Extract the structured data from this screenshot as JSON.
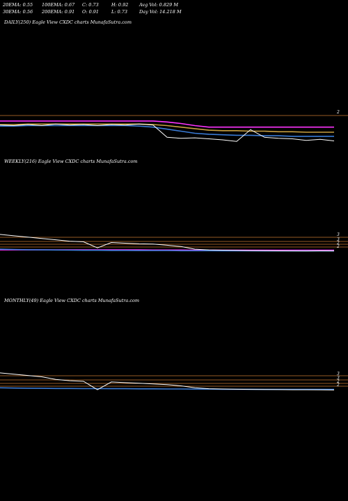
{
  "header": {
    "row1": [
      "20EMA: 0.55",
      "100EMA: 0.67",
      "C: 0.73",
      "H: 0.92",
      "Avg Vol: 0.829 M"
    ],
    "row2": [
      "30EMA: 0.56",
      "200EMA: 0.91",
      "O: 0.91",
      "L: 0.73",
      "Day Vol: 14.218 M"
    ]
  },
  "colors": {
    "background": "#000000",
    "price": "#ffffff",
    "ema_blue": "#3a7bd5",
    "ema_magenta": "#ff33ff",
    "ema_gold": "#c8a040",
    "grid": "#c87830"
  },
  "chart_data": [
    {
      "type": "line",
      "label": "DAILY(250) Eagle   View  CXDC charts MunafaSutra.com",
      "tick_labels": [
        "2"
      ],
      "series": [
        {
          "color": "#ff33ff",
          "values": [
            1.12,
            1.12,
            1.12,
            1.12,
            1.12,
            1.12,
            1.12,
            1.12,
            1.12,
            1.12,
            1.12,
            1.12,
            1.1,
            1.07,
            1.03,
            1.0,
            1.0,
            1.0,
            1.0,
            1.0,
            1.0,
            1.0,
            1.0,
            1.0,
            1.0
          ]
        },
        {
          "color": "#c8a040",
          "values": [
            1.05,
            1.05,
            1.06,
            1.06,
            1.06,
            1.06,
            1.06,
            1.06,
            1.06,
            1.06,
            1.06,
            1.05,
            1.03,
            1.0,
            0.97,
            0.94,
            0.93,
            0.93,
            0.92,
            0.92,
            0.91,
            0.91,
            0.9,
            0.9,
            0.9
          ]
        },
        {
          "color": "#3a7bd5",
          "values": [
            1.02,
            1.02,
            1.03,
            1.03,
            1.03,
            1.03,
            1.03,
            1.03,
            1.03,
            1.03,
            1.02,
            1.0,
            0.96,
            0.92,
            0.88,
            0.86,
            0.85,
            0.84,
            0.84,
            0.83,
            0.83,
            0.82,
            0.82,
            0.82,
            0.82
          ]
        },
        {
          "color": "#ffffff",
          "values": [
            1.04,
            1.03,
            1.05,
            1.03,
            1.06,
            1.04,
            1.05,
            1.03,
            1.05,
            1.04,
            1.06,
            1.04,
            0.8,
            0.78,
            0.79,
            0.77,
            0.75,
            0.72,
            0.95,
            0.8,
            0.78,
            0.77,
            0.74,
            0.76,
            0.73
          ]
        }
      ]
    },
    {
      "type": "line",
      "label": "WEEKLY(216) Eagle   View  CXDC charts MunafaSutra.com",
      "tick_labels": [
        "3",
        "3",
        "2",
        "2"
      ],
      "series": [
        {
          "color": "#ff33ff",
          "values": [
            0.35,
            0.35,
            0.35,
            0.35,
            0.35,
            0.35,
            0.35,
            0.35,
            0.35,
            0.35,
            0.35,
            0.34,
            0.34,
            0.34,
            0.33,
            0.33,
            0.33,
            0.33,
            0.33,
            0.33,
            0.33,
            0.33,
            0.33,
            0.33,
            0.33
          ]
        },
        {
          "color": "#3a7bd5",
          "values": [
            0.4,
            0.38,
            0.36,
            0.35,
            0.34,
            0.33,
            0.32,
            0.32,
            0.31,
            0.31,
            0.3,
            0.3,
            0.3,
            0.29,
            0.29,
            0.29,
            0.28,
            0.28,
            0.28,
            0.27,
            0.27,
            0.27,
            0.27,
            0.27,
            0.27
          ]
        },
        {
          "color": "#ffffff",
          "values": [
            1.5,
            1.4,
            1.3,
            1.2,
            1.1,
            1.0,
            0.95,
            0.5,
            0.9,
            0.85,
            0.8,
            0.78,
            0.7,
            0.6,
            0.4,
            0.35,
            0.33,
            0.32,
            0.3,
            0.29,
            0.28,
            0.27,
            0.26,
            0.28,
            0.27
          ]
        }
      ]
    },
    {
      "type": "line",
      "label": "MONTHLY(49) Eagle   View  CXDC charts MunafaSutra.com",
      "tick_labels": [
        "3",
        "3",
        "2",
        "2"
      ],
      "series": [
        {
          "color": "#3a7bd5",
          "values": [
            0.45,
            0.43,
            0.42,
            0.41,
            0.4,
            0.4,
            0.39,
            0.39,
            0.38,
            0.38,
            0.37,
            0.37,
            0.36,
            0.36,
            0.35,
            0.35,
            0.34,
            0.34,
            0.34,
            0.33,
            0.33,
            0.33,
            0.33,
            0.33,
            0.33
          ]
        },
        {
          "color": "#ffffff",
          "values": [
            1.6,
            1.5,
            1.4,
            1.3,
            1.1,
            1.0,
            0.95,
            0.3,
            0.9,
            0.85,
            0.8,
            0.75,
            0.7,
            0.6,
            0.45,
            0.38,
            0.36,
            0.34,
            0.33,
            0.32,
            0.31,
            0.3,
            0.3,
            0.29,
            0.28
          ]
        }
      ]
    }
  ]
}
